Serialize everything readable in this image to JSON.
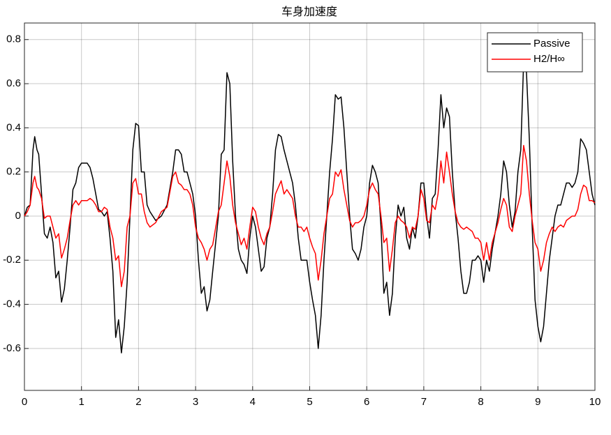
{
  "chart_data": {
    "type": "line",
    "title": "车身加速度",
    "x": [
      0,
      0.05,
      0.1,
      0.15,
      0.18,
      0.22,
      0.25,
      0.3,
      0.35,
      0.4,
      0.45,
      0.5,
      0.55,
      0.6,
      0.65,
      0.7,
      0.75,
      0.8,
      0.85,
      0.9,
      0.95,
      1,
      1.1,
      1.15,
      1.2,
      1.25,
      1.3,
      1.35,
      1.4,
      1.45,
      1.5,
      1.55,
      1.6,
      1.65,
      1.7,
      1.75,
      1.8,
      1.85,
      1.9,
      1.95,
      2,
      2.05,
      2.1,
      2.15,
      2.2,
      2.3,
      2.4,
      2.5,
      2.6,
      2.65,
      2.7,
      2.75,
      2.8,
      2.85,
      2.9,
      2.95,
      3,
      3.05,
      3.1,
      3.15,
      3.2,
      3.25,
      3.3,
      3.4,
      3.45,
      3.5,
      3.55,
      3.6,
      3.65,
      3.7,
      3.75,
      3.8,
      3.85,
      3.9,
      3.95,
      4,
      4.05,
      4.1,
      4.15,
      4.2,
      4.25,
      4.3,
      4.35,
      4.4,
      4.45,
      4.5,
      4.55,
      4.6,
      4.65,
      4.7,
      4.75,
      4.8,
      4.85,
      4.9,
      4.95,
      5,
      5.05,
      5.1,
      5.15,
      5.2,
      5.25,
      5.3,
      5.35,
      5.4,
      5.45,
      5.5,
      5.55,
      5.6,
      5.65,
      5.7,
      5.75,
      5.8,
      5.85,
      5.9,
      5.95,
      6,
      6.05,
      6.1,
      6.15,
      6.2,
      6.25,
      6.3,
      6.35,
      6.4,
      6.45,
      6.5,
      6.55,
      6.6,
      6.65,
      6.7,
      6.75,
      6.8,
      6.85,
      6.9,
      6.95,
      7,
      7.05,
      7.1,
      7.15,
      7.2,
      7.25,
      7.3,
      7.35,
      7.4,
      7.45,
      7.5,
      7.55,
      7.6,
      7.65,
      7.7,
      7.75,
      7.8,
      7.85,
      7.9,
      7.95,
      8,
      8.05,
      8.1,
      8.15,
      8.2,
      8.3,
      8.35,
      8.4,
      8.45,
      8.5,
      8.55,
      8.6,
      8.65,
      8.7,
      8.75,
      8.8,
      8.85,
      8.9,
      8.95,
      9,
      9.05,
      9.1,
      9.15,
      9.2,
      9.25,
      9.3,
      9.35,
      9.4,
      9.45,
      9.5,
      9.55,
      9.6,
      9.65,
      9.7,
      9.75,
      9.8,
      9.85,
      9.9,
      9.95,
      10
    ],
    "series": [
      {
        "name": "Passive",
        "color": "#000000",
        "values": [
          0,
          0.04,
          0.05,
          0.3,
          0.36,
          0.3,
          0.28,
          0.1,
          -0.08,
          -0.1,
          -0.05,
          -0.12,
          -0.28,
          -0.25,
          -0.39,
          -0.33,
          -0.2,
          -0.05,
          0.12,
          0.15,
          0.22,
          0.24,
          0.24,
          0.22,
          0.17,
          0.1,
          0.03,
          0.02,
          0,
          0.02,
          -0.1,
          -0.25,
          -0.55,
          -0.47,
          -0.62,
          -0.5,
          -0.3,
          0,
          0.3,
          0.42,
          0.41,
          0.2,
          0.2,
          0.05,
          0.02,
          -0.02,
          0,
          0.05,
          0.2,
          0.3,
          0.3,
          0.28,
          0.2,
          0.2,
          0.15,
          0.1,
          0,
          -0.2,
          -0.35,
          -0.32,
          -0.43,
          -0.38,
          -0.25,
          0,
          0.28,
          0.3,
          0.65,
          0.6,
          0.25,
          0,
          -0.15,
          -0.2,
          -0.22,
          -0.26,
          -0.1,
          0,
          -0.05,
          -0.15,
          -0.25,
          -0.23,
          -0.1,
          -0.05,
          0.1,
          0.3,
          0.37,
          0.36,
          0.3,
          0.25,
          0.2,
          0.15,
          0.05,
          -0.1,
          -0.2,
          -0.2,
          -0.2,
          -0.3,
          -0.38,
          -0.45,
          -0.6,
          -0.45,
          -0.2,
          0,
          0.2,
          0.35,
          0.55,
          0.53,
          0.54,
          0.4,
          0.2,
          0,
          -0.15,
          -0.17,
          -0.2,
          -0.15,
          -0.05,
          0,
          0.15,
          0.23,
          0.2,
          0.15,
          -0.05,
          -0.35,
          -0.3,
          -0.45,
          -0.35,
          -0.1,
          0.05,
          0,
          0.04,
          -0.1,
          -0.15,
          -0.05,
          -0.1,
          0,
          0.15,
          0.15,
          0,
          -0.1,
          0.08,
          0.1,
          0.3,
          0.55,
          0.4,
          0.49,
          0.45,
          0.2,
          0.02,
          -0.1,
          -0.25,
          -0.35,
          -0.35,
          -0.3,
          -0.2,
          -0.2,
          -0.18,
          -0.2,
          -0.3,
          -0.2,
          -0.25,
          -0.15,
          0,
          0.1,
          0.25,
          0.2,
          0.05,
          -0.05,
          0.02,
          0.2,
          0.3,
          0.7,
          0.65,
          0.35,
          -0.05,
          -0.38,
          -0.5,
          -0.57,
          -0.5,
          -0.35,
          -0.2,
          -0.1,
          0,
          0.05,
          0.05,
          0.1,
          0.15,
          0.15,
          0.13,
          0.15,
          0.2,
          0.35,
          0.33,
          0.3,
          0.2,
          0.1,
          0.05
        ]
      },
      {
        "name": "H2/H∞",
        "color": "#ff0000",
        "values": [
          0,
          0.02,
          0.05,
          0.15,
          0.18,
          0.13,
          0.12,
          0.08,
          -0.01,
          0,
          0,
          -0.05,
          -0.1,
          -0.08,
          -0.19,
          -0.15,
          -0.1,
          -0.02,
          0.05,
          0.07,
          0.05,
          0.07,
          0.07,
          0.08,
          0.07,
          0.05,
          0.02,
          0.02,
          0.04,
          0.03,
          -0.05,
          -0.1,
          -0.2,
          -0.18,
          -0.32,
          -0.25,
          -0.05,
          0,
          0.15,
          0.17,
          0.1,
          0.1,
          0.02,
          -0.03,
          -0.05,
          -0.03,
          0.02,
          0.04,
          0.18,
          0.2,
          0.15,
          0.14,
          0.12,
          0.12,
          0.1,
          0.05,
          -0.05,
          -0.1,
          -0.12,
          -0.15,
          -0.2,
          -0.15,
          -0.13,
          0.02,
          0.05,
          0.15,
          0.25,
          0.18,
          0.05,
          -0.03,
          -0.08,
          -0.13,
          -0.1,
          -0.15,
          -0.05,
          0.04,
          0.02,
          -0.05,
          -0.1,
          -0.13,
          -0.08,
          -0.05,
          0.02,
          0.1,
          0.13,
          0.16,
          0.1,
          0.12,
          0.1,
          0.08,
          0,
          -0.05,
          -0.05,
          -0.07,
          -0.05,
          -0.1,
          -0.14,
          -0.17,
          -0.29,
          -0.2,
          -0.08,
          0,
          0.08,
          0.1,
          0.2,
          0.18,
          0.21,
          0.12,
          0.05,
          -0.02,
          -0.05,
          -0.03,
          -0.03,
          -0.02,
          0,
          0.05,
          0.12,
          0.15,
          0.12,
          0.1,
          0,
          -0.12,
          -0.1,
          -0.25,
          -0.15,
          -0.03,
          0,
          -0.02,
          -0.03,
          -0.05,
          -0.1,
          -0.05,
          -0.06,
          0,
          0.12,
          0.08,
          -0.02,
          -0.03,
          0.05,
          0.03,
          0.1,
          0.25,
          0.15,
          0.29,
          0.2,
          0.1,
          0.02,
          -0.03,
          -0.05,
          -0.06,
          -0.05,
          -0.06,
          -0.07,
          -0.1,
          -0.1,
          -0.12,
          -0.2,
          -0.12,
          -0.2,
          -0.12,
          -0.03,
          0.03,
          0.08,
          0.05,
          -0.05,
          -0.07,
          0,
          0.05,
          0.1,
          0.32,
          0.25,
          0.1,
          -0.02,
          -0.12,
          -0.15,
          -0.25,
          -0.2,
          -0.12,
          -0.08,
          -0.05,
          -0.07,
          -0.05,
          -0.04,
          -0.05,
          -0.02,
          -0.01,
          0,
          0,
          0.03,
          0.1,
          0.14,
          0.13,
          0.07,
          0.07,
          0.06
        ]
      }
    ],
    "xlim": [
      0,
      10
    ],
    "xticks": [
      0,
      1,
      2,
      3,
      4,
      5,
      6,
      7,
      8,
      9,
      10
    ],
    "ylim": [
      -0.79,
      0.875
    ],
    "yticks": [
      -0.6,
      -0.4,
      -0.2,
      0,
      0.2,
      0.4,
      0.6,
      0.8
    ],
    "grid": true,
    "legend": "northeast"
  }
}
